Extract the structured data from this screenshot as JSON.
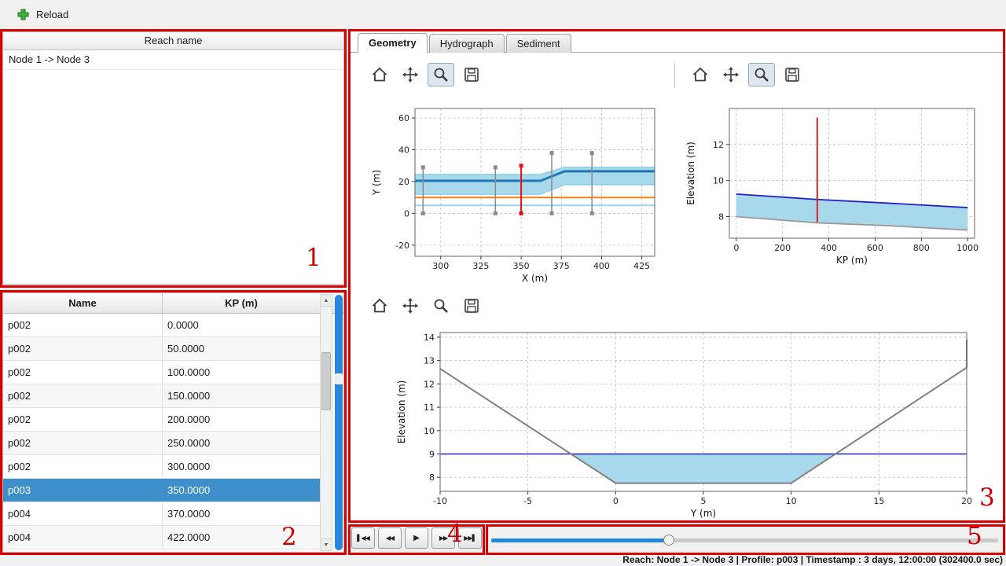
{
  "toolbar": {
    "reload_label": "Reload"
  },
  "reach_panel": {
    "header": "Reach name",
    "items": [
      "Node 1 -> Node 3"
    ]
  },
  "profile_table": {
    "columns": [
      "Name",
      "KP (m)"
    ],
    "rows": [
      [
        "p002",
        "0.0000"
      ],
      [
        "p002",
        "50.0000"
      ],
      [
        "p002",
        "100.0000"
      ],
      [
        "p002",
        "150.0000"
      ],
      [
        "p002",
        "200.0000"
      ],
      [
        "p002",
        "250.0000"
      ],
      [
        "p002",
        "300.0000"
      ],
      [
        "p003",
        "350.0000"
      ],
      [
        "p004",
        "370.0000"
      ],
      [
        "p004",
        "422.0000"
      ]
    ],
    "selected_index": 7,
    "scroll_up": "▲",
    "scroll_down": "▼"
  },
  "tabs": [
    {
      "label": "Geometry",
      "active": true
    },
    {
      "label": "Hydrograph",
      "active": false
    },
    {
      "label": "Sediment",
      "active": false
    }
  ],
  "plot_toolbars": {
    "buttons": [
      "home",
      "pan",
      "zoom",
      "save"
    ],
    "zoom_active": [
      true,
      true,
      false
    ]
  },
  "playback": {
    "buttons": [
      {
        "name": "skip-start",
        "glyph": "▌◀◀"
      },
      {
        "name": "rewind",
        "glyph": "◀◀"
      },
      {
        "name": "play",
        "glyph": "▶"
      },
      {
        "name": "fast-forward",
        "glyph": "▶▶"
      },
      {
        "name": "skip-end",
        "glyph": "▶▶▌"
      }
    ]
  },
  "slider": {
    "value_pct": 35
  },
  "status_bar": {
    "text": "Reach: Node 1 -> Node 3 | Profile: p003 | Timestamp : 3 days, 12:00:00 (302400.0 sec)"
  },
  "annotations": {
    "labels": [
      "1",
      "2",
      "3",
      "4",
      "5"
    ]
  },
  "colors": {
    "selection": "#3d8ec9",
    "slider_fill": "#1e87e0",
    "annotation": "#cc0000",
    "water_fill": "#a8d8ec",
    "water_line": "#2222cc",
    "bed_line": "#808080",
    "red_marker": "#e01010",
    "orange_line": "#ff7f0e"
  },
  "chart_data": [
    {
      "id": "plan_view",
      "type": "line",
      "xlabel": "X (m)",
      "ylabel": "Y (m)",
      "xlim": [
        284,
        433
      ],
      "ylim": [
        -27,
        66
      ],
      "xticks": [
        300,
        325,
        350,
        375,
        400,
        425
      ],
      "yticks": [
        -20,
        0,
        20,
        40,
        60
      ],
      "margins": {
        "l": 70,
        "r": 25,
        "t": 20,
        "b": 38
      },
      "elements": [
        {
          "kind": "fill",
          "color": "#a8d8ec",
          "points": [
            [
              284,
              12
            ],
            [
              362,
              12
            ],
            [
              377,
              18
            ],
            [
              433,
              18
            ],
            [
              433,
              29
            ],
            [
              377,
              29
            ],
            [
              362,
              24.5
            ],
            [
              284,
              24.5
            ]
          ]
        },
        {
          "kind": "line",
          "color": "#8fd0e8",
          "width": 1.5,
          "points": [
            [
              284,
              24.5
            ],
            [
              362,
              24.5
            ],
            [
              377,
              29
            ],
            [
              433,
              29
            ]
          ]
        },
        {
          "kind": "line",
          "color": "#8fd0e8",
          "width": 1.5,
          "points": [
            [
              284,
              12
            ],
            [
              362,
              12
            ],
            [
              377,
              18
            ],
            [
              433,
              18
            ]
          ]
        },
        {
          "kind": "line",
          "color": "#1f77b4",
          "width": 3,
          "points": [
            [
              284,
              20.5
            ],
            [
              362,
              20.5
            ],
            [
              377,
              26.5
            ],
            [
              433,
              26.5
            ]
          ]
        },
        {
          "kind": "line",
          "color": "#ff7f0e",
          "width": 2,
          "points": [
            [
              284,
              10
            ],
            [
              433,
              10
            ]
          ]
        },
        {
          "kind": "line",
          "color": "#99d6ea",
          "width": 2,
          "points": [
            [
              284,
              5
            ],
            [
              433,
              5
            ]
          ]
        },
        {
          "kind": "vline",
          "x": 289,
          "y1": 0,
          "y2": 29,
          "color": "#8a8a8a",
          "width": 1.5,
          "markers": true
        },
        {
          "kind": "vline",
          "x": 334,
          "y1": 0,
          "y2": 29,
          "color": "#8a8a8a",
          "width": 1.5,
          "markers": true
        },
        {
          "kind": "vline",
          "x": 369,
          "y1": 0,
          "y2": 38,
          "color": "#8a8a8a",
          "width": 1.5,
          "markers": true
        },
        {
          "kind": "vline",
          "x": 394,
          "y1": 0,
          "y2": 38,
          "color": "#8a8a8a",
          "width": 1.5,
          "markers": true
        },
        {
          "kind": "vline",
          "x": 350,
          "y1": 0,
          "y2": 30,
          "color": "#e01010",
          "width": 2,
          "markers": true
        }
      ]
    },
    {
      "id": "long_profile",
      "type": "line",
      "xlabel": "KP (m)",
      "ylabel": "Elevation (m)",
      "xlim": [
        -30,
        1030
      ],
      "ylim": [
        6.8,
        14.0
      ],
      "xticks": [
        0,
        200,
        400,
        600,
        800,
        1000
      ],
      "yticks": [
        8,
        10,
        12
      ],
      "margins": {
        "l": 62,
        "r": 28,
        "t": 20,
        "b": 61
      },
      "elements": [
        {
          "kind": "fill",
          "color": "#a8d8ec",
          "points": [
            [
              0,
              9.25
            ],
            [
              350,
              8.95
            ],
            [
              650,
              8.75
            ],
            [
              1000,
              8.5
            ],
            [
              1000,
              7.25
            ],
            [
              650,
              7.5
            ],
            [
              350,
              7.65
            ],
            [
              0,
              8.0
            ]
          ]
        },
        {
          "kind": "line",
          "color": "#2222cc",
          "width": 1.8,
          "points": [
            [
              0,
              9.25
            ],
            [
              350,
              8.95
            ],
            [
              650,
              8.75
            ],
            [
              1000,
              8.5
            ]
          ]
        },
        {
          "kind": "line",
          "color": "#999999",
          "width": 1.8,
          "points": [
            [
              0,
              8.0
            ],
            [
              350,
              7.65
            ],
            [
              650,
              7.5
            ],
            [
              1000,
              7.25
            ]
          ]
        },
        {
          "kind": "vline",
          "x": 350,
          "y1": 7.7,
          "y2": 13.5,
          "color": "#e01010",
          "width": 1.8,
          "markers": false
        }
      ]
    },
    {
      "id": "cross_section",
      "type": "line",
      "xlabel": "Y (m)",
      "ylabel": "Elevation (m)",
      "xlim": [
        -10,
        20
      ],
      "ylim": [
        7.4,
        14.2
      ],
      "xticks": [
        -10,
        -5,
        0,
        5,
        10,
        15,
        20
      ],
      "yticks": [
        8,
        9,
        10,
        11,
        12,
        13,
        14
      ],
      "margins": {
        "l": 102,
        "r": 40,
        "t": 17,
        "b": 35
      },
      "elements": [
        {
          "kind": "fill",
          "color": "#a8d8ec",
          "points": [
            [
              -2.55,
              9
            ],
            [
              12.55,
              9
            ],
            [
              10,
              7.75
            ],
            [
              0,
              7.75
            ]
          ]
        },
        {
          "kind": "line",
          "color": "#2222cc",
          "width": 1.5,
          "points": [
            [
              -10,
              9
            ],
            [
              20,
              9
            ]
          ]
        },
        {
          "kind": "line",
          "color": "#808080",
          "width": 2,
          "points": [
            [
              -10,
              12.65
            ],
            [
              0,
              7.75
            ],
            [
              10,
              7.75
            ],
            [
              20,
              12.7
            ],
            [
              20,
              13.9
            ]
          ]
        }
      ]
    }
  ]
}
